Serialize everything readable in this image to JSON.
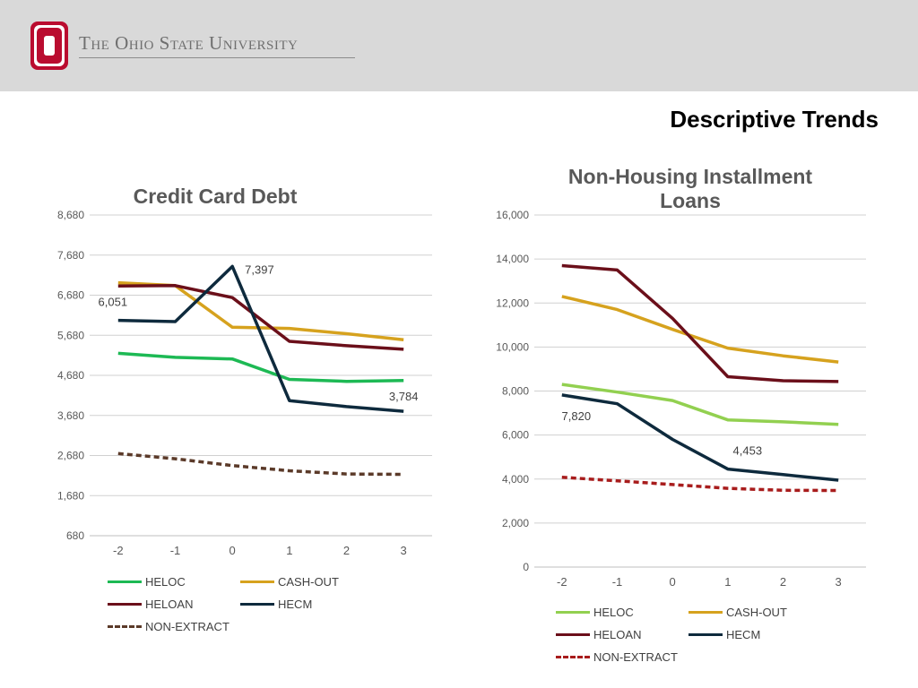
{
  "header": {
    "university": "The Ohio State University",
    "logo_letter": "O",
    "brand_color": "#ba0c2f"
  },
  "slide_title": "Descriptive Trends",
  "chart_data": [
    {
      "type": "line",
      "title": "Credit Card Debt",
      "x": [
        -2,
        -1,
        0,
        1,
        2,
        3
      ],
      "ylim": [
        680,
        8680
      ],
      "yticks": [
        680,
        1680,
        2680,
        3680,
        4680,
        5680,
        6680,
        7680,
        8680
      ],
      "ytick_labels": [
        "680",
        "1,680",
        "2,680",
        "3,680",
        "4,680",
        "5,680",
        "6,680",
        "7,680",
        "8,680"
      ],
      "grid": true,
      "legend_position": "bottom",
      "series": [
        {
          "name": "HELOC",
          "color": "#1db954",
          "dash": false,
          "values": [
            5230,
            5130,
            5090,
            4580,
            4530,
            4550
          ]
        },
        {
          "name": "CASH-OUT",
          "color": "#d6a21e",
          "dash": false,
          "values": [
            6990,
            6920,
            5880,
            5850,
            5720,
            5570
          ]
        },
        {
          "name": "HELOAN",
          "color": "#6b0f1a",
          "dash": false,
          "values": [
            6910,
            6920,
            6620,
            5530,
            5420,
            5330
          ]
        },
        {
          "name": "HECM",
          "color": "#0e2a3d",
          "dash": false,
          "values": [
            6051,
            6020,
            7397,
            4050,
            3900,
            3784
          ]
        },
        {
          "name": "NON-EXTRACT",
          "color": "#5b3a29",
          "dash": true,
          "values": [
            2730,
            2600,
            2430,
            2300,
            2220,
            2210
          ]
        }
      ],
      "annotations": [
        {
          "text": "6,051",
          "series": 3,
          "index": 0
        },
        {
          "text": "7,397",
          "series": 3,
          "index": 2
        },
        {
          "text": "3,784",
          "series": 3,
          "index": 5
        }
      ]
    },
    {
      "type": "line",
      "title": "Non-Housing Installment Loans",
      "title_lines": [
        "Non-Housing Installment",
        "Loans"
      ],
      "x": [
        -2,
        -1,
        0,
        1,
        2,
        3
      ],
      "ylim": [
        0,
        16000
      ],
      "yticks": [
        0,
        2000,
        4000,
        6000,
        8000,
        10000,
        12000,
        14000,
        16000
      ],
      "ytick_labels": [
        "0",
        "2,000",
        "4,000",
        "6,000",
        "8,000",
        "10,000",
        "12,000",
        "14,000",
        "16,000"
      ],
      "grid": true,
      "legend_position": "bottom",
      "series": [
        {
          "name": "HELOC",
          "color": "#92d050",
          "dash": false,
          "values": [
            8300,
            7950,
            7570,
            6690,
            6600,
            6480
          ]
        },
        {
          "name": "CASH-OUT",
          "color": "#d6a21e",
          "dash": false,
          "values": [
            12300,
            11700,
            10800,
            9950,
            9600,
            9320
          ]
        },
        {
          "name": "HELOAN",
          "color": "#6b0f1a",
          "dash": false,
          "values": [
            13700,
            13500,
            11300,
            8650,
            8470,
            8430
          ]
        },
        {
          "name": "HECM",
          "color": "#0e2a3d",
          "dash": false,
          "values": [
            7820,
            7420,
            5800,
            4453,
            4200,
            3950
          ]
        },
        {
          "name": "NON-EXTRACT",
          "color": "#a81c1c",
          "dash": true,
          "values": [
            4080,
            3920,
            3750,
            3580,
            3490,
            3480
          ]
        }
      ],
      "annotations": [
        {
          "text": "7,820",
          "series": 3,
          "index": 0
        },
        {
          "text": "4,453",
          "series": 3,
          "index": 3
        }
      ]
    }
  ]
}
